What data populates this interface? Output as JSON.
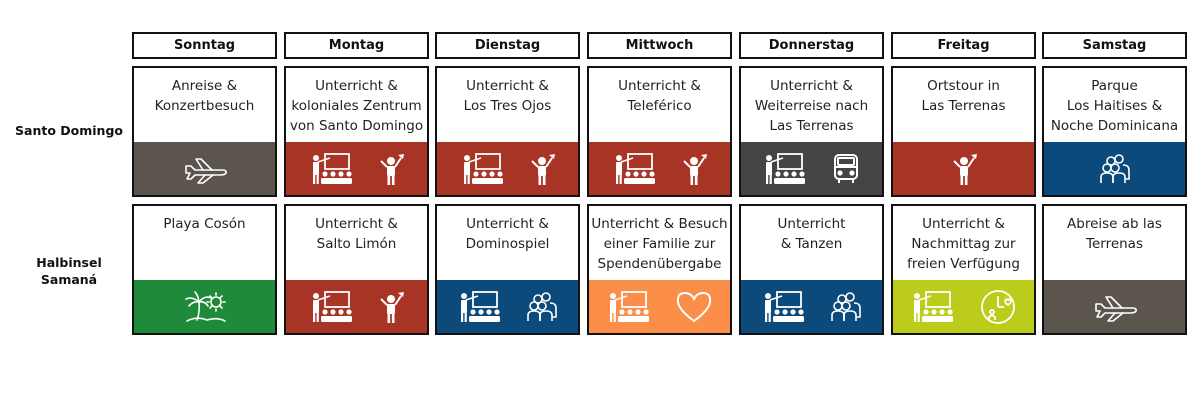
{
  "days": [
    "Sonntag",
    "Montag",
    "Dienstag",
    "Mittwoch",
    "Donnerstag",
    "Freitag",
    "Samstag"
  ],
  "rows": [
    {
      "label": "Santo Domingo",
      "cells": [
        {
          "text": "Anreise &\nKonzertbesuch",
          "color": "#5b554d",
          "icons": [
            "airplane-icon"
          ]
        },
        {
          "text": "Unterricht &\nkoloniales Zentrum\nvon Santo Domingo",
          "color": "#a83426",
          "icons": [
            "classroom-icon",
            "guide-icon"
          ]
        },
        {
          "text": "Unterricht &\nLos Tres Ojos",
          "color": "#a83426",
          "icons": [
            "classroom-icon",
            "guide-icon"
          ]
        },
        {
          "text": "Unterricht &\nTeleférico",
          "color": "#a83426",
          "icons": [
            "classroom-icon",
            "guide-icon"
          ]
        },
        {
          "text": "Unterricht &\nWeiterreise nach\nLas Terrenas",
          "color": "#444444",
          "icons": [
            "classroom-icon",
            "bus-icon"
          ]
        },
        {
          "text": "Ortstour in\nLas Terrenas",
          "color": "#a83426",
          "icons": [
            "guide-icon"
          ]
        },
        {
          "text": "Parque\nLos Haitises &\nNoche Dominicana",
          "color": "#0b4a7a",
          "icons": [
            "group-icon"
          ]
        }
      ]
    },
    {
      "label": "Halbinsel\nSamaná",
      "cells": [
        {
          "text": "Playa Cosón",
          "color": "#1e8a3a",
          "icons": [
            "beach-icon"
          ]
        },
        {
          "text": "Unterricht &\nSalto Limón",
          "color": "#a83426",
          "icons": [
            "classroom-icon",
            "guide-icon"
          ]
        },
        {
          "text": "Unterricht &\nDominospiel",
          "color": "#0b4a7a",
          "icons": [
            "classroom-icon",
            "group-icon"
          ]
        },
        {
          "text": "Unterricht & Besuch\neiner Familie zur\nSpendenübergabe",
          "color": "#fb8f4a",
          "icons": [
            "classroom-icon",
            "heart-icon"
          ]
        },
        {
          "text": "Unterricht\n& Tanzen",
          "color": "#0b4a7a",
          "icons": [
            "classroom-icon",
            "group-icon"
          ]
        },
        {
          "text": "Unterricht &\nNachmittag zur\nfreien Verfügung",
          "color": "#bccc1a",
          "icons": [
            "classroom-icon",
            "free-time-icon"
          ]
        },
        {
          "text": "Abreise ab las\nTerrenas",
          "color": "#5b554d",
          "icons": [
            "airplane-icon"
          ]
        }
      ]
    }
  ]
}
